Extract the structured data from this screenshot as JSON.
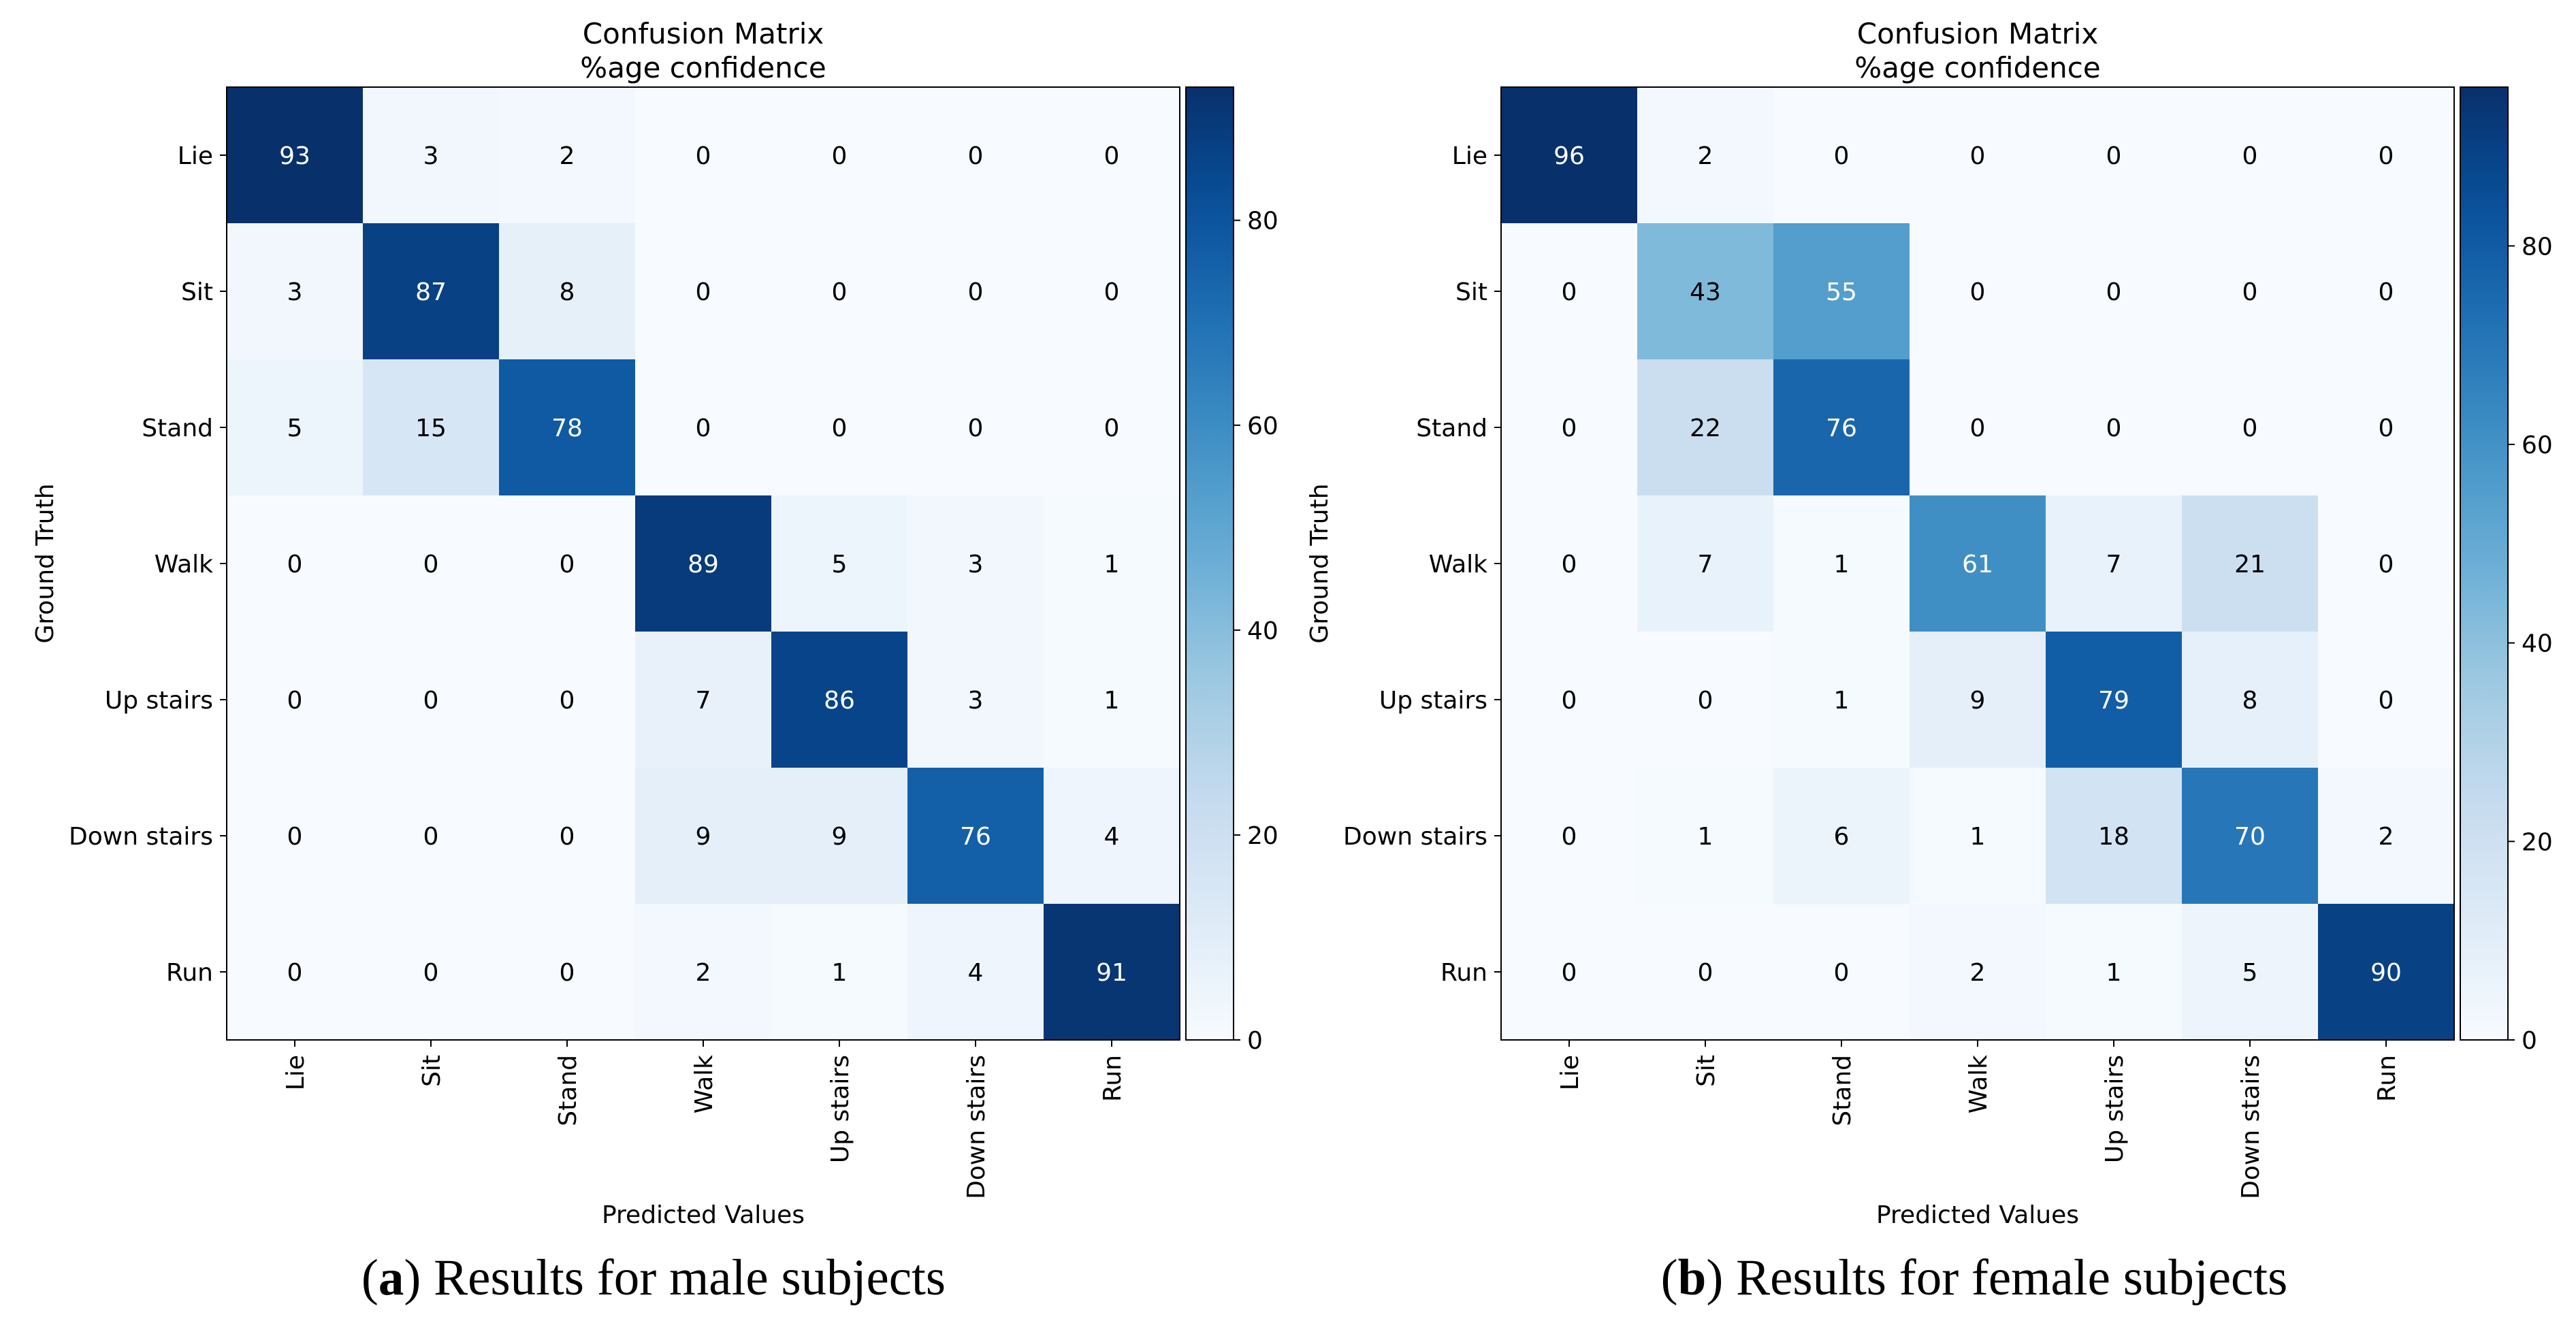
{
  "chart_data": [
    {
      "type": "heatmap",
      "panel_label": "a",
      "caption": "Results for male subjects",
      "title": "Confusion Matrix",
      "subtitle": "%age confidence",
      "xlabel": "Predicted Values",
      "ylabel": "Ground Truth",
      "x_categories": [
        "Lie",
        "Sit",
        "Stand",
        "Walk",
        "Up stairs",
        "Down stairs",
        "Run"
      ],
      "y_categories": [
        "Lie",
        "Sit",
        "Stand",
        "Walk",
        "Up stairs",
        "Down stairs",
        "Run"
      ],
      "values": [
        [
          93,
          3,
          2,
          0,
          0,
          0,
          0
        ],
        [
          3,
          87,
          8,
          0,
          0,
          0,
          0
        ],
        [
          5,
          15,
          78,
          0,
          0,
          0,
          0
        ],
        [
          0,
          0,
          0,
          89,
          5,
          3,
          1
        ],
        [
          0,
          0,
          0,
          7,
          86,
          3,
          1
        ],
        [
          0,
          0,
          0,
          9,
          9,
          76,
          4
        ],
        [
          0,
          0,
          0,
          2,
          1,
          4,
          91
        ]
      ],
      "colorbar": {
        "min": 0,
        "max": 93,
        "ticks": [
          0,
          20,
          40,
          60,
          80
        ],
        "colormap": "Blues"
      }
    },
    {
      "type": "heatmap",
      "panel_label": "b",
      "caption": "Results for female subjects",
      "title": "Confusion Matrix",
      "subtitle": "%age confidence",
      "xlabel": "Predicted Values",
      "ylabel": "Ground Truth",
      "x_categories": [
        "Lie",
        "Sit",
        "Stand",
        "Walk",
        "Up stairs",
        "Down stairs",
        "Run"
      ],
      "y_categories": [
        "Lie",
        "Sit",
        "Stand",
        "Walk",
        "Up stairs",
        "Down stairs",
        "Run"
      ],
      "values": [
        [
          96,
          2,
          0,
          0,
          0,
          0,
          0
        ],
        [
          0,
          43,
          55,
          0,
          0,
          0,
          0
        ],
        [
          0,
          22,
          76,
          0,
          0,
          0,
          0
        ],
        [
          0,
          7,
          1,
          61,
          7,
          21,
          0
        ],
        [
          0,
          0,
          1,
          9,
          79,
          8,
          0
        ],
        [
          0,
          1,
          6,
          1,
          18,
          70,
          2
        ],
        [
          0,
          0,
          0,
          2,
          1,
          5,
          90
        ]
      ],
      "colorbar": {
        "min": 0,
        "max": 96,
        "ticks": [
          0,
          20,
          40,
          60,
          80
        ],
        "colormap": "Blues"
      }
    }
  ]
}
